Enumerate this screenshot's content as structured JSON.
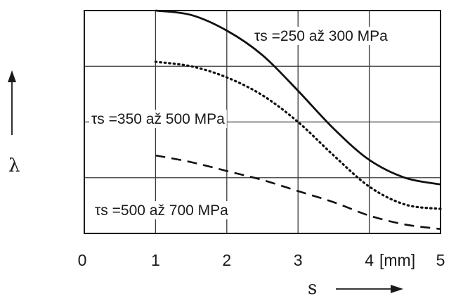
{
  "chart_data": {
    "type": "line",
    "xlabel": "s",
    "ylabel": "λ",
    "x_unit": "[mm]",
    "xlim": [
      0,
      5
    ],
    "x_ticks": [
      "0",
      "1",
      "2",
      "3",
      "4",
      "5"
    ],
    "grid": true,
    "series": [
      {
        "name": "τs =250 až 300 MPa",
        "style": "solid",
        "x": [
          1,
          1.5,
          2,
          2.5,
          3,
          3.5,
          4,
          4.5,
          5
        ],
        "y": [
          1.0,
          0.98,
          0.91,
          0.8,
          0.64,
          0.47,
          0.33,
          0.25,
          0.22
        ]
      },
      {
        "name": "τs =350 až 500 MPa",
        "style": "dotted",
        "x": [
          1,
          1.5,
          2,
          2.5,
          3,
          3.5,
          4,
          4.5,
          5
        ],
        "y": [
          0.77,
          0.75,
          0.7,
          0.62,
          0.5,
          0.35,
          0.21,
          0.13,
          0.11
        ]
      },
      {
        "name": "τs =500 až 700 MPa",
        "style": "dashed",
        "x": [
          1,
          1.5,
          2,
          2.5,
          3,
          3.5,
          4,
          4.5,
          5
        ],
        "y": [
          0.35,
          0.32,
          0.28,
          0.24,
          0.19,
          0.14,
          0.08,
          0.04,
          0.02
        ]
      }
    ]
  }
}
